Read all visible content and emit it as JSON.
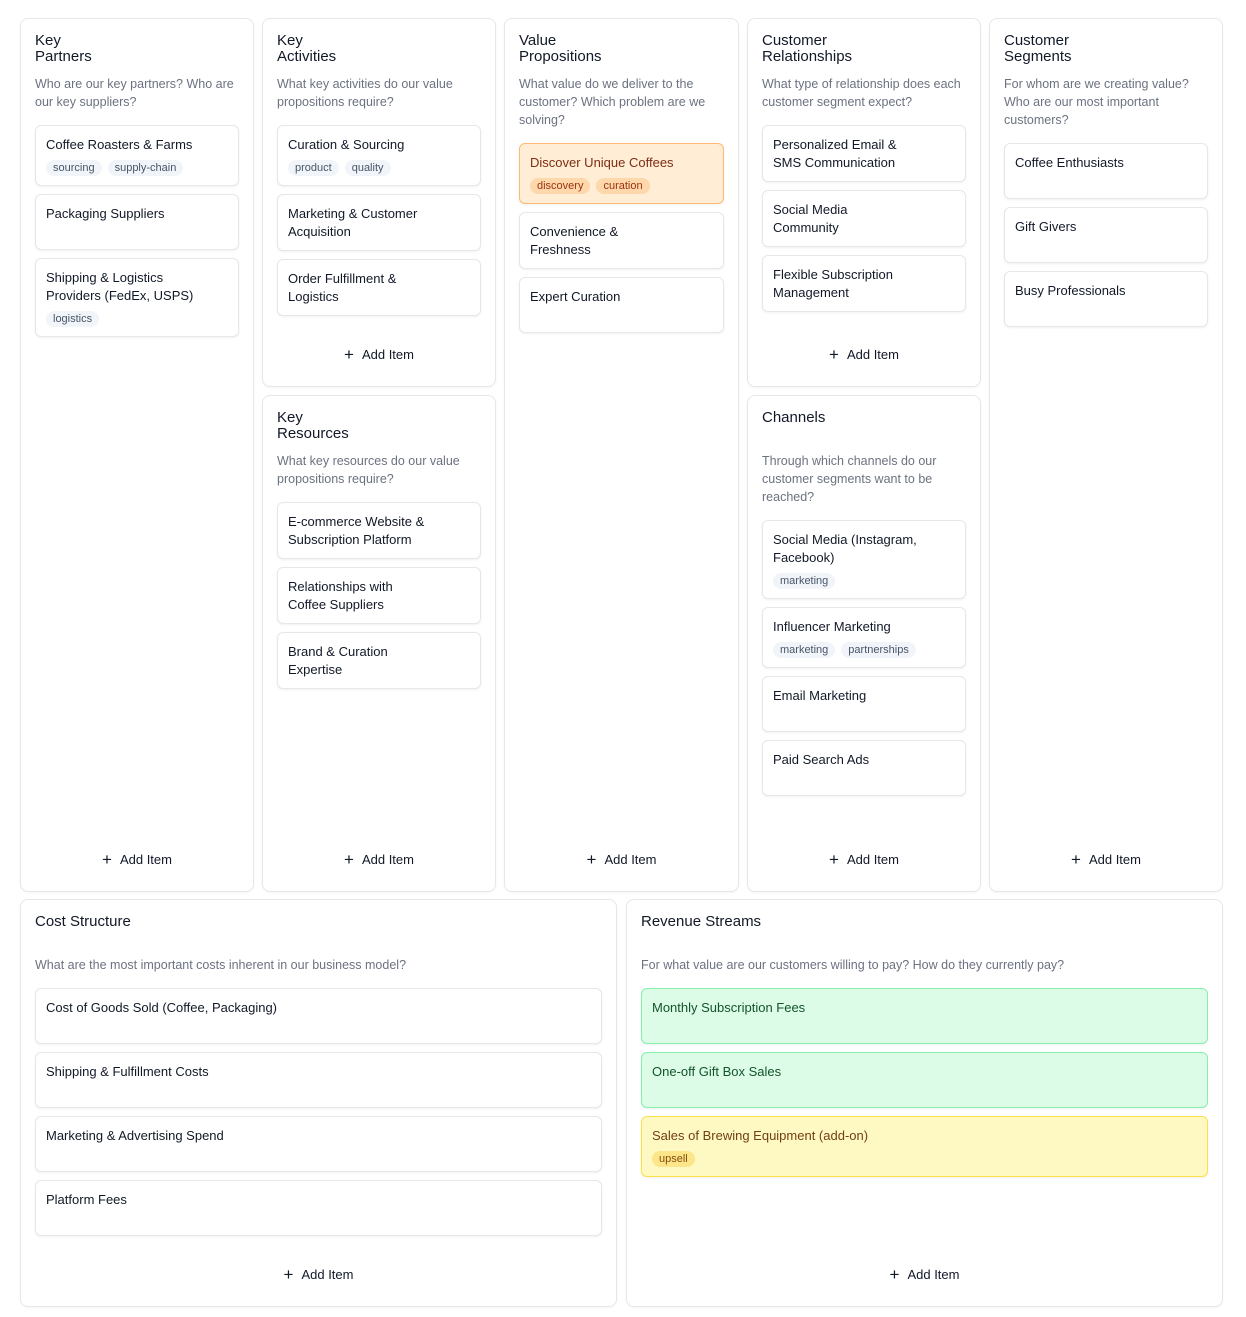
{
  "panels": [
    {
      "id": "key-partners",
      "title": "Key\nPartners",
      "description": "Who are our key partners? Who are our key suppliers?",
      "add_label": "Add Item",
      "items": [
        {
          "text": "Coffee Roasters & Farms",
          "tags": [
            "sourcing",
            "supply-chain"
          ]
        },
        {
          "text": "Packaging Suppliers",
          "tags": []
        },
        {
          "text": "Shipping & Logistics\nProviders (FedEx, USPS)",
          "tags": [
            "logistics"
          ]
        }
      ]
    },
    {
      "id": "key-activities",
      "title": "Key\nActivities",
      "description": "What key activities do our value propositions require?",
      "add_label": "Add Item",
      "items": [
        {
          "text": "Curation & Sourcing",
          "tags": [
            "product",
            "quality"
          ]
        },
        {
          "text": "Marketing & Customer\nAcquisition",
          "tags": []
        },
        {
          "text": "Order Fulfillment &\nLogistics",
          "tags": []
        }
      ]
    },
    {
      "id": "key-resources",
      "title": "Key\nResources",
      "description": "What key resources do our value propositions require?",
      "add_label": "Add Item",
      "items": [
        {
          "text": "E-commerce Website &\nSubscription Platform",
          "tags": []
        },
        {
          "text": "Relationships with\nCoffee Suppliers",
          "tags": []
        },
        {
          "text": "Brand & Curation\nExpertise",
          "tags": []
        }
      ]
    },
    {
      "id": "value-propositions",
      "title": "Value\nPropositions",
      "description": "What value do we deliver to the customer? Which problem are we solving?",
      "add_label": "Add Item",
      "items": [
        {
          "text": "Discover Unique Coffees",
          "tags": [
            "discovery",
            "curation"
          ],
          "variant": "orange"
        },
        {
          "text": "Convenience &\nFreshness",
          "tags": []
        },
        {
          "text": "Expert Curation",
          "tags": []
        }
      ]
    },
    {
      "id": "customer-relationships",
      "title": "Customer\nRelationships",
      "description": "What type of relationship does each customer segment expect?",
      "add_label": "Add Item",
      "items": [
        {
          "text": "Personalized Email &\nSMS Communication",
          "tags": []
        },
        {
          "text": "Social Media\nCommunity",
          "tags": []
        },
        {
          "text": "Flexible Subscription\nManagement",
          "tags": []
        }
      ]
    },
    {
      "id": "channels",
      "title": "Channels",
      "description": "Through which channels do our customer segments want to be reached?",
      "add_label": "Add Item",
      "items": [
        {
          "text": "Social Media (Instagram,\nFacebook)",
          "tags": [
            "marketing"
          ]
        },
        {
          "text": "Influencer Marketing",
          "tags": [
            "marketing",
            "partnerships"
          ]
        },
        {
          "text": "Email Marketing",
          "tags": []
        },
        {
          "text": "Paid Search Ads",
          "tags": []
        }
      ]
    },
    {
      "id": "customer-segments",
      "title": "Customer\nSegments",
      "description": "For whom are we creating value? Who are our most important customers?",
      "add_label": "Add Item",
      "items": [
        {
          "text": "Coffee Enthusiasts",
          "tags": []
        },
        {
          "text": "Gift Givers",
          "tags": []
        },
        {
          "text": "Busy Professionals",
          "tags": []
        }
      ]
    },
    {
      "id": "cost-structure",
      "title": "Cost Structure",
      "description": "What are the most important costs inherent in our business model?",
      "add_label": "Add Item",
      "items": [
        {
          "text": "Cost of Goods Sold (Coffee, Packaging)",
          "tags": []
        },
        {
          "text": "Shipping & Fulfillment Costs",
          "tags": []
        },
        {
          "text": "Marketing & Advertising Spend",
          "tags": []
        },
        {
          "text": "Platform Fees",
          "tags": []
        }
      ]
    },
    {
      "id": "revenue-streams",
      "title": "Revenue Streams",
      "description": "For what value are our customers willing to pay? How do they currently pay?",
      "add_label": "Add Item",
      "items": [
        {
          "text": "Monthly Subscription Fees",
          "tags": [],
          "variant": "green"
        },
        {
          "text": "One-off Gift Box Sales",
          "tags": [],
          "variant": "green"
        },
        {
          "text": "Sales of Brewing Equipment (add-on)",
          "tags": [
            "upsell"
          ],
          "variant": "yellow"
        }
      ]
    }
  ],
  "colors": {
    "orange_card": "#ffedd5",
    "green_card": "#dcfce7",
    "yellow_card": "#fef9c3",
    "border": "#e5e7eb"
  }
}
